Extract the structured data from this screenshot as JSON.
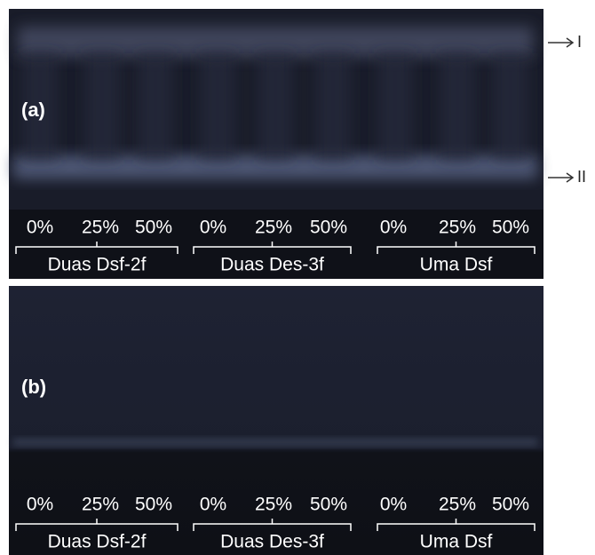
{
  "panels": [
    {
      "label": "(a)",
      "lanes": [
        "0%",
        "25%",
        "50%",
        "0%",
        "25%",
        "50%",
        "0%",
        "25%",
        "50%"
      ],
      "groups": [
        "Duas Dsf-2f",
        "Duas Des-3f",
        "Uma Dsf"
      ]
    },
    {
      "label": "(b)",
      "lanes": [
        "0%",
        "25%",
        "50%",
        "0%",
        "25%",
        "50%",
        "0%",
        "25%",
        "50%"
      ],
      "groups": [
        "Duas Dsf-2f",
        "Duas Des-3f",
        "Uma Dsf"
      ]
    }
  ],
  "markers": [
    {
      "label": "I"
    },
    {
      "label": "II"
    }
  ]
}
